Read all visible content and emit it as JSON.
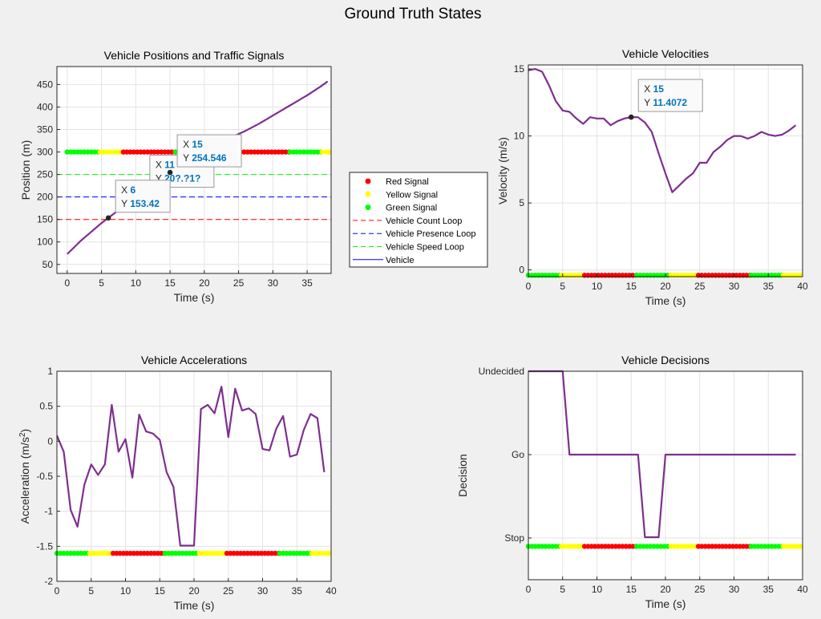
{
  "figure_title": "Ground Truth States",
  "colors": {
    "vehicle": "#7e2f8e",
    "red": "#ff0000",
    "yellow": "#ffff00",
    "green": "#00ff00",
    "count_loop": "#ff0000",
    "presence_loop": "#0000ff",
    "speed_loop": "#00ff00",
    "datatip": "#0072bd"
  },
  "legend": {
    "placement": "center",
    "entries": [
      {
        "label": "Red Signal",
        "style": "marker",
        "color": "#ff0000"
      },
      {
        "label": "Yellow Signal",
        "style": "marker",
        "color": "#ffff00"
      },
      {
        "label": "Green Signal",
        "style": "marker",
        "color": "#00ff00"
      },
      {
        "label": "Vehicle Count Loop",
        "style": "dashed",
        "color": "#ff0000"
      },
      {
        "label": "Vehicle Presence Loop",
        "style": "dashed",
        "color": "#0000ff"
      },
      {
        "label": "Vehicle Speed Loop",
        "style": "dashed",
        "color": "#00ff00"
      },
      {
        "label": "Vehicle",
        "style": "solid",
        "color": "#0000ff"
      }
    ]
  },
  "chart_data": [
    {
      "id": "positions",
      "type": "line",
      "title": "Vehicle Positions and Traffic Signals",
      "xlabel": "Time (s)",
      "ylabel": "Position (m)",
      "xlim": [
        -1.5,
        38.5
      ],
      "ylim": [
        30,
        490
      ],
      "xticks": [
        0,
        5,
        10,
        15,
        20,
        25,
        30,
        35
      ],
      "yticks": [
        50,
        100,
        150,
        200,
        250,
        300,
        350,
        400,
        450
      ],
      "grid": true,
      "hlines": [
        {
          "y": 150,
          "color": "#ff0000",
          "name": "Vehicle Count Loop"
        },
        {
          "y": 200,
          "color": "#0000ff",
          "name": "Vehicle Presence Loop"
        },
        {
          "y": 250,
          "color": "#00ff00",
          "name": "Vehicle Speed Loop"
        }
      ],
      "signal_y": 300,
      "signal_segments": [
        {
          "color": "green",
          "from": 0,
          "to": 4.8
        },
        {
          "color": "yellow",
          "from": 4.8,
          "to": 8.2
        },
        {
          "color": "red",
          "from": 8.2,
          "to": 15.8
        },
        {
          "color": "green",
          "from": 15.8,
          "to": 20.8
        },
        {
          "color": "yellow",
          "from": 20.8,
          "to": 24.8
        },
        {
          "color": "red",
          "from": 24.8,
          "to": 32.5
        },
        {
          "color": "green",
          "from": 32.5,
          "to": 37.2
        },
        {
          "color": "yellow",
          "from": 37.2,
          "to": 38.5
        }
      ],
      "series": [
        {
          "x": [
            0,
            1,
            2,
            3,
            4,
            5,
            6,
            7,
            8,
            9,
            10,
            11,
            12,
            13,
            14,
            15,
            16,
            17,
            18,
            19,
            20,
            21,
            22,
            23,
            24,
            25,
            26,
            27,
            28,
            29,
            30,
            31,
            32,
            33,
            34,
            35,
            36,
            37,
            38
          ],
          "y": [
            73,
            88,
            103,
            116,
            129,
            142,
            153.42,
            165,
            177,
            188,
            198,
            209,
            220,
            231,
            243,
            254.546,
            265,
            276,
            287,
            299,
            309,
            314,
            319,
            326,
            333,
            340,
            347,
            355,
            363,
            372,
            381,
            390,
            399,
            408,
            417,
            426,
            436,
            446,
            457
          ]
        }
      ],
      "datatips": [
        {
          "x": 11,
          "y": 209,
          "xlabel_text": "X",
          "ylabel_text": "Y",
          "x_text": "11",
          "y_text": "20?.?1?"
        },
        {
          "x": 6,
          "y": 153.42,
          "xlabel_text": "X",
          "ylabel_text": "Y",
          "x_text": "6",
          "y_text": "153.42"
        },
        {
          "x": 15,
          "y": 254.546,
          "xlabel_text": "X",
          "ylabel_text": "Y",
          "x_text": "15",
          "y_text": "254.546"
        }
      ]
    },
    {
      "id": "velocities",
      "type": "line",
      "title": "Vehicle Velocities",
      "xlabel": "Time (s)",
      "ylabel": "Velocity (m/s)",
      "xlim": [
        0,
        40
      ],
      "ylim": [
        -0.5,
        15.3
      ],
      "xticks": [
        0,
        5,
        10,
        15,
        20,
        25,
        30,
        35,
        40
      ],
      "yticks": [
        0,
        5,
        10,
        15
      ],
      "grid": true,
      "signal_y": -0.4,
      "signal_segments": [
        {
          "color": "green",
          "from": 0,
          "to": 4.8
        },
        {
          "color": "yellow",
          "from": 4.8,
          "to": 8.2
        },
        {
          "color": "red",
          "from": 8.2,
          "to": 15.8
        },
        {
          "color": "green",
          "from": 15.8,
          "to": 20.8
        },
        {
          "color": "yellow",
          "from": 20.8,
          "to": 24.8
        },
        {
          "color": "red",
          "from": 24.8,
          "to": 32.5
        },
        {
          "color": "green",
          "from": 32.5,
          "to": 37.2
        },
        {
          "color": "yellow",
          "from": 37.2,
          "to": 40
        }
      ],
      "series": [
        {
          "x": [
            0,
            1,
            2,
            3,
            4,
            5,
            6,
            7,
            8,
            9,
            10,
            11,
            12,
            13,
            14,
            15,
            16,
            17,
            18,
            19,
            20,
            21,
            22,
            23,
            24,
            25,
            26,
            27,
            28,
            29,
            30,
            31,
            32,
            33,
            34,
            35,
            36,
            37,
            38,
            39
          ],
          "y": [
            14.9,
            15.0,
            14.8,
            13.8,
            12.6,
            11.9,
            11.8,
            11.3,
            10.9,
            11.4,
            11.3,
            11.3,
            10.8,
            11.1,
            11.3,
            11.4072,
            11.4,
            11.0,
            10.3,
            8.7,
            7.2,
            5.8,
            6.3,
            6.8,
            7.2,
            8.0,
            8.0,
            8.8,
            9.2,
            9.7,
            10.0,
            10.0,
            9.8,
            10.0,
            10.3,
            10.1,
            10.0,
            10.1,
            10.4,
            10.8
          ]
        }
      ],
      "datatips": [
        {
          "x": 15,
          "y": 11.4072,
          "xlabel_text": "X",
          "ylabel_text": "Y",
          "x_text": "15",
          "y_text": "11.4072"
        }
      ]
    },
    {
      "id": "accelerations",
      "type": "line",
      "title": "Vehicle Accelerations",
      "xlabel": "Time (s)",
      "ylabel": "Acceleration (m/s",
      "ylabel_sup": "2",
      "ylabel_end": ")",
      "xlim": [
        0,
        40
      ],
      "ylim": [
        -2,
        1
      ],
      "xticks": [
        0,
        5,
        10,
        15,
        20,
        25,
        30,
        35,
        40
      ],
      "yticks": [
        -2,
        -1.5,
        -1,
        -0.5,
        0,
        0.5,
        1
      ],
      "ytick_labels": [
        "-2",
        "-1.5",
        "-1",
        "-0.5",
        "0",
        "0.5",
        "1"
      ],
      "grid": true,
      "signal_y": -1.6,
      "signal_segments": [
        {
          "color": "green",
          "from": 0,
          "to": 4.8
        },
        {
          "color": "yellow",
          "from": 4.8,
          "to": 8.2
        },
        {
          "color": "red",
          "from": 8.2,
          "to": 15.8
        },
        {
          "color": "green",
          "from": 15.8,
          "to": 20.8
        },
        {
          "color": "yellow",
          "from": 20.8,
          "to": 24.8
        },
        {
          "color": "red",
          "from": 24.8,
          "to": 32.5
        },
        {
          "color": "green",
          "from": 32.5,
          "to": 37.2
        },
        {
          "color": "yellow",
          "from": 37.2,
          "to": 40
        }
      ],
      "series": [
        {
          "x": [
            0,
            1,
            2,
            3,
            4,
            5,
            6,
            7,
            8,
            9,
            10,
            11,
            12,
            13,
            14,
            15,
            16,
            17,
            18,
            19,
            20,
            21,
            22,
            23,
            24,
            25,
            26,
            27,
            28,
            29,
            30,
            31,
            32,
            33,
            34,
            35,
            36,
            37,
            38,
            39
          ],
          "y": [
            0.08,
            -0.15,
            -0.98,
            -1.22,
            -0.62,
            -0.33,
            -0.48,
            -0.33,
            0.52,
            -0.15,
            0.03,
            -0.52,
            0.38,
            0.14,
            0.11,
            0.02,
            -0.44,
            -0.65,
            -1.49,
            -1.49,
            -1.49,
            0.46,
            0.52,
            0.4,
            0.78,
            0.06,
            0.75,
            0.44,
            0.47,
            0.39,
            -0.11,
            -0.13,
            0.18,
            0.36,
            -0.22,
            -0.19,
            0.16,
            0.39,
            0.33,
            -0.44
          ]
        }
      ]
    },
    {
      "id": "decisions",
      "type": "line",
      "title": "Vehicle Decisions",
      "xlabel": "Time (s)",
      "ylabel": "Decision",
      "xlim": [
        0,
        40
      ],
      "ylim": [
        -0.5,
        2
      ],
      "xticks": [
        0,
        5,
        10,
        15,
        20,
        25,
        30,
        35,
        40
      ],
      "yticks": [
        0,
        1,
        2
      ],
      "ytick_labels": [
        "Stop",
        "Go",
        "Undecided"
      ],
      "grid": true,
      "signal_y": -0.1,
      "signal_segments": [
        {
          "color": "green",
          "from": 0,
          "to": 4.8
        },
        {
          "color": "yellow",
          "from": 4.8,
          "to": 8.2
        },
        {
          "color": "red",
          "from": 8.2,
          "to": 15.8
        },
        {
          "color": "green",
          "from": 15.8,
          "to": 20.8
        },
        {
          "color": "yellow",
          "from": 20.8,
          "to": 24.8
        },
        {
          "color": "red",
          "from": 24.8,
          "to": 32.5
        },
        {
          "color": "green",
          "from": 32.5,
          "to": 37.2
        },
        {
          "color": "yellow",
          "from": 37.2,
          "to": 40
        }
      ],
      "series": [
        {
          "x": [
            0,
            1,
            2,
            3,
            4,
            5,
            6,
            7,
            8,
            9,
            10,
            11,
            12,
            13,
            14,
            15,
            16,
            17,
            18,
            19,
            20,
            21,
            22,
            23,
            24,
            25,
            26,
            27,
            28,
            29,
            30,
            31,
            32,
            33,
            34,
            35,
            36,
            37,
            38,
            39
          ],
          "y": [
            2,
            2,
            2,
            2,
            2,
            2,
            1,
            1,
            1,
            1,
            1,
            1,
            1,
            1,
            1,
            1,
            1,
            0.01,
            0.01,
            0.01,
            1,
            1,
            1,
            1,
            1,
            1,
            1,
            1,
            1,
            1,
            1,
            1,
            1,
            1,
            1,
            1,
            1,
            1,
            1,
            1
          ]
        }
      ]
    }
  ]
}
